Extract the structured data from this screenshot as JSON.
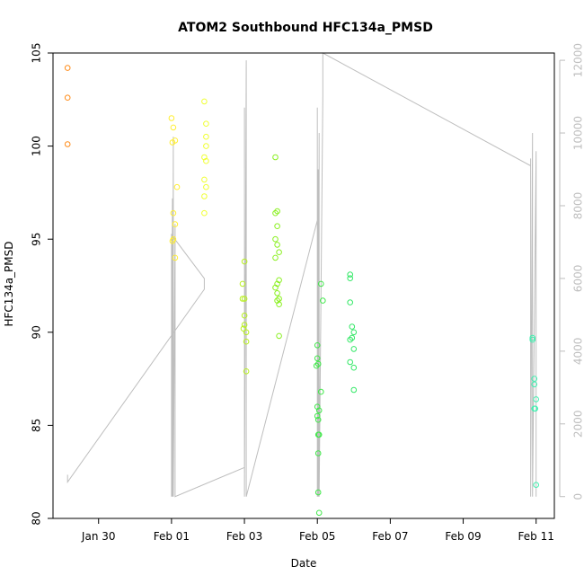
{
  "chart_data": {
    "type": "scatter",
    "title": "ATOM2 Southbound HFC134a_PMSD",
    "xlabel": "Date",
    "ylabel": "HFC134a_PMSD",
    "x_ticks": [
      "Jan 30",
      "Feb 01",
      "Feb 03",
      "Feb 05",
      "Feb 07",
      "Feb 09",
      "Feb 11"
    ],
    "y_ticks": [
      "80",
      "85",
      "90",
      "95",
      "100",
      "105"
    ],
    "y2_ticks": [
      "0",
      "2000",
      "4000",
      "6000",
      "8000",
      "10000",
      "12000"
    ],
    "xlim": [
      "2016-01-28T18:00",
      "2016-02-11T12:00"
    ],
    "ylim": [
      80,
      105
    ],
    "y2lim": [
      -600,
      12200
    ],
    "colors": {
      "frame": "#000000",
      "line": "#bebebe",
      "right_axis": "#bebebe"
    },
    "points": [
      {
        "x": "2016-01-29T03:36",
        "y": 104.2,
        "color": "#ff8c1a"
      },
      {
        "x": "2016-01-29T03:36",
        "y": 102.6,
        "color": "#ff8c1a"
      },
      {
        "x": "2016-01-29T03:36",
        "y": 100.1,
        "color": "#ff8c1a"
      },
      {
        "x": "2016-02-01T00:00",
        "y": 101.5,
        "color": "#ffee33"
      },
      {
        "x": "2016-02-01T01:12",
        "y": 101.0,
        "color": "#ffee33"
      },
      {
        "x": "2016-02-01T02:24",
        "y": 100.3,
        "color": "#ffee33"
      },
      {
        "x": "2016-02-01T00:36",
        "y": 100.2,
        "color": "#ffee33"
      },
      {
        "x": "2016-02-01T03:36",
        "y": 97.8,
        "color": "#ffee33"
      },
      {
        "x": "2016-02-01T01:12",
        "y": 96.4,
        "color": "#ffee33"
      },
      {
        "x": "2016-02-01T02:24",
        "y": 95.8,
        "color": "#ffee33"
      },
      {
        "x": "2016-02-01T01:12",
        "y": 95.0,
        "color": "#ffee33"
      },
      {
        "x": "2016-02-01T00:36",
        "y": 94.9,
        "color": "#ffee33"
      },
      {
        "x": "2016-02-01T02:24",
        "y": 94.0,
        "color": "#ffee33"
      },
      {
        "x": "2016-02-01T21:36",
        "y": 102.4,
        "color": "#f0ff33"
      },
      {
        "x": "2016-02-01T22:48",
        "y": 101.2,
        "color": "#f0ff33"
      },
      {
        "x": "2016-02-01T22:48",
        "y": 100.5,
        "color": "#f0ff33"
      },
      {
        "x": "2016-02-01T22:48",
        "y": 100.0,
        "color": "#f0ff33"
      },
      {
        "x": "2016-02-01T21:36",
        "y": 99.4,
        "color": "#f0ff33"
      },
      {
        "x": "2016-02-01T22:48",
        "y": 99.2,
        "color": "#f0ff33"
      },
      {
        "x": "2016-02-01T21:36",
        "y": 98.2,
        "color": "#f0ff33"
      },
      {
        "x": "2016-02-01T22:48",
        "y": 97.8,
        "color": "#f0ff33"
      },
      {
        "x": "2016-02-01T21:36",
        "y": 97.3,
        "color": "#f0ff33"
      },
      {
        "x": "2016-02-01T21:36",
        "y": 96.4,
        "color": "#f0ff33"
      },
      {
        "x": "2016-02-02T22:48",
        "y": 92.6,
        "color": "#b8f020"
      },
      {
        "x": "2016-02-03T00:00",
        "y": 93.8,
        "color": "#b8f020"
      },
      {
        "x": "2016-02-02T22:48",
        "y": 91.8,
        "color": "#b8f020"
      },
      {
        "x": "2016-02-03T00:00",
        "y": 91.8,
        "color": "#b8f020"
      },
      {
        "x": "2016-02-03T00:00",
        "y": 90.9,
        "color": "#b8f020"
      },
      {
        "x": "2016-02-03T00:00",
        "y": 90.4,
        "color": "#b8f020"
      },
      {
        "x": "2016-02-02T23:24",
        "y": 90.2,
        "color": "#b8f020"
      },
      {
        "x": "2016-02-03T01:12",
        "y": 90.0,
        "color": "#b8f020"
      },
      {
        "x": "2016-02-03T01:12",
        "y": 89.5,
        "color": "#b8f020"
      },
      {
        "x": "2016-02-03T01:12",
        "y": 87.9,
        "color": "#b8f020"
      },
      {
        "x": "2016-02-03T20:24",
        "y": 99.4,
        "color": "#8af020"
      },
      {
        "x": "2016-02-03T21:36",
        "y": 96.5,
        "color": "#8af020"
      },
      {
        "x": "2016-02-03T20:24",
        "y": 96.4,
        "color": "#8af020"
      },
      {
        "x": "2016-02-03T21:36",
        "y": 95.7,
        "color": "#8af020"
      },
      {
        "x": "2016-02-03T20:24",
        "y": 95.0,
        "color": "#8af020"
      },
      {
        "x": "2016-02-03T21:36",
        "y": 94.7,
        "color": "#8af020"
      },
      {
        "x": "2016-02-03T22:48",
        "y": 94.3,
        "color": "#8af020"
      },
      {
        "x": "2016-02-03T20:24",
        "y": 94.0,
        "color": "#8af020"
      },
      {
        "x": "2016-02-03T22:48",
        "y": 92.8,
        "color": "#8af020"
      },
      {
        "x": "2016-02-03T21:36",
        "y": 92.6,
        "color": "#8af020"
      },
      {
        "x": "2016-02-03T20:24",
        "y": 92.4,
        "color": "#8af020"
      },
      {
        "x": "2016-02-03T21:36",
        "y": 92.1,
        "color": "#8af020"
      },
      {
        "x": "2016-02-03T22:48",
        "y": 91.8,
        "color": "#8af020"
      },
      {
        "x": "2016-02-03T21:36",
        "y": 91.7,
        "color": "#8af020"
      },
      {
        "x": "2016-02-03T22:48",
        "y": 91.5,
        "color": "#8af020"
      },
      {
        "x": "2016-02-03T22:48",
        "y": 89.8,
        "color": "#8af020"
      },
      {
        "x": "2016-02-05T02:24",
        "y": 92.6,
        "color": "#40e84a"
      },
      {
        "x": "2016-02-05T03:36",
        "y": 91.7,
        "color": "#40e84a"
      },
      {
        "x": "2016-02-05T00:00",
        "y": 89.3,
        "color": "#40e84a"
      },
      {
        "x": "2016-02-05T00:00",
        "y": 88.6,
        "color": "#40e84a"
      },
      {
        "x": "2016-02-04T23:24",
        "y": 88.2,
        "color": "#40e84a"
      },
      {
        "x": "2016-02-05T00:36",
        "y": 88.3,
        "color": "#40e84a"
      },
      {
        "x": "2016-02-05T02:24",
        "y": 86.8,
        "color": "#40e84a"
      },
      {
        "x": "2016-02-05T00:00",
        "y": 86.0,
        "color": "#40e84a"
      },
      {
        "x": "2016-02-05T01:12",
        "y": 85.8,
        "color": "#40e84a"
      },
      {
        "x": "2016-02-05T00:00",
        "y": 85.5,
        "color": "#40e84a"
      },
      {
        "x": "2016-02-05T00:36",
        "y": 85.3,
        "color": "#40e84a"
      },
      {
        "x": "2016-02-05T00:36",
        "y": 84.5,
        "color": "#40e84a"
      },
      {
        "x": "2016-02-05T01:12",
        "y": 84.5,
        "color": "#40e84a"
      },
      {
        "x": "2016-02-05T00:36",
        "y": 83.5,
        "color": "#40e84a"
      },
      {
        "x": "2016-02-05T00:36",
        "y": 81.4,
        "color": "#40e84a"
      },
      {
        "x": "2016-02-05T01:12",
        "y": 80.3,
        "color": "#40e84a"
      },
      {
        "x": "2016-02-05T21:36",
        "y": 93.1,
        "color": "#33e866"
      },
      {
        "x": "2016-02-05T21:36",
        "y": 92.9,
        "color": "#33e866"
      },
      {
        "x": "2016-02-05T21:36",
        "y": 91.6,
        "color": "#33e866"
      },
      {
        "x": "2016-02-05T22:48",
        "y": 90.3,
        "color": "#33e866"
      },
      {
        "x": "2016-02-06T00:00",
        "y": 90.0,
        "color": "#33e866"
      },
      {
        "x": "2016-02-05T22:48",
        "y": 89.7,
        "color": "#33e866"
      },
      {
        "x": "2016-02-05T21:36",
        "y": 89.6,
        "color": "#33e866"
      },
      {
        "x": "2016-02-06T00:00",
        "y": 89.1,
        "color": "#33e866"
      },
      {
        "x": "2016-02-05T21:36",
        "y": 88.4,
        "color": "#33e866"
      },
      {
        "x": "2016-02-06T00:00",
        "y": 88.1,
        "color": "#33e866"
      },
      {
        "x": "2016-02-06T00:00",
        "y": 86.9,
        "color": "#33e866"
      },
      {
        "x": "2016-02-10T21:36",
        "y": 89.7,
        "color": "#40f0b0"
      },
      {
        "x": "2016-02-10T21:36",
        "y": 89.6,
        "color": "#40f0b0"
      },
      {
        "x": "2016-02-10T22:48",
        "y": 87.5,
        "color": "#40f0b0"
      },
      {
        "x": "2016-02-10T22:48",
        "y": 87.2,
        "color": "#40f0b0"
      },
      {
        "x": "2016-02-11T00:00",
        "y": 86.4,
        "color": "#40f0b0"
      },
      {
        "x": "2016-02-10T22:48",
        "y": 85.9,
        "color": "#40f0b0"
      },
      {
        "x": "2016-02-10T23:24",
        "y": 85.9,
        "color": "#40f0b0"
      },
      {
        "x": "2016-02-11T00:00",
        "y": 81.8,
        "color": "#40f0b0"
      }
    ],
    "line_series": [
      {
        "x": "2016-01-29T03:36",
        "y2": 600
      },
      {
        "x": "2016-01-29T03:36",
        "y2": 400
      },
      {
        "x": "2016-02-01T21:36",
        "y2": 5700
      },
      {
        "x": "2016-02-01T21:36",
        "y2": 6000
      },
      {
        "x": "2016-02-01T00:00",
        "y2": 7200
      },
      {
        "x": "2016-02-01T00:00",
        "y2": 0
      },
      {
        "x": "2016-02-01T00:36",
        "y2": 8200
      },
      {
        "x": "2016-02-01T00:36",
        "y2": 0
      },
      {
        "x": "2016-02-01T01:12",
        "y2": 9900
      },
      {
        "x": "2016-02-01T01:12",
        "y2": 0
      },
      {
        "x": "2016-02-01T02:24",
        "y2": 7500
      },
      {
        "x": "2016-02-01T02:24",
        "y2": 0
      },
      {
        "x": "2016-02-03T00:00",
        "y2": 800
      },
      {
        "x": "2016-02-03T00:00",
        "y2": 10700
      },
      {
        "x": "2016-02-03T00:00",
        "y2": 0
      },
      {
        "x": "2016-02-03T01:12",
        "y2": 12000
      },
      {
        "x": "2016-02-03T01:12",
        "y2": 0
      },
      {
        "x": "2016-02-05T00:00",
        "y2": 7600
      },
      {
        "x": "2016-02-05T00:00",
        "y2": 10700
      },
      {
        "x": "2016-02-05T00:00",
        "y2": 0
      },
      {
        "x": "2016-02-05T00:36",
        "y2": 9000
      },
      {
        "x": "2016-02-05T00:36",
        "y2": 0
      },
      {
        "x": "2016-02-05T01:12",
        "y2": 10000
      },
      {
        "x": "2016-02-05T01:12",
        "y2": 0
      },
      {
        "x": "2016-02-05T03:36",
        "y2": 11000
      },
      {
        "x": "2016-02-05T03:36",
        "y2": 12200
      },
      {
        "x": "2016-02-10T20:24",
        "y2": 9100
      },
      {
        "x": "2016-02-10T20:24",
        "y2": 9300
      },
      {
        "x": "2016-02-10T20:24",
        "y2": 0
      },
      {
        "x": "2016-02-10T21:36",
        "y2": 10000
      },
      {
        "x": "2016-02-10T21:36",
        "y2": 0
      },
      {
        "x": "2016-02-11T00:00",
        "y2": 9500
      },
      {
        "x": "2016-02-11T00:00",
        "y2": 0
      }
    ],
    "grid": false,
    "legend": "none"
  }
}
